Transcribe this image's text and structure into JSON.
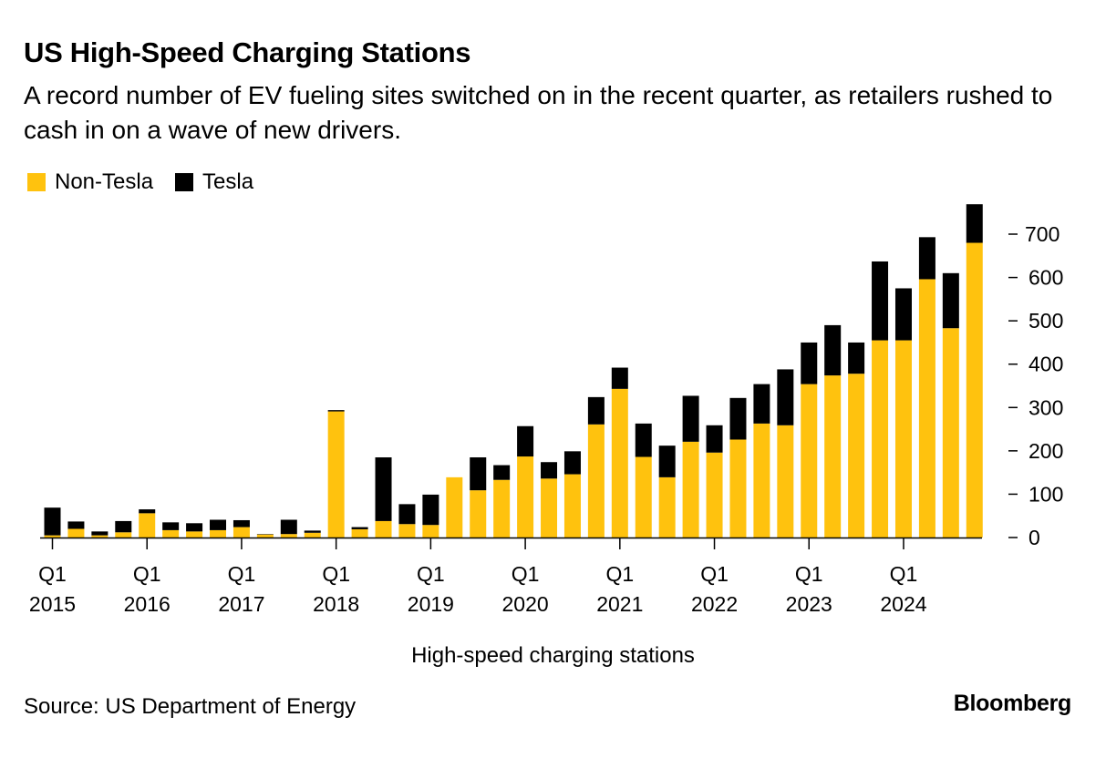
{
  "header": {
    "title": "US High-Speed Charging Stations",
    "subtitle": "A record number of EV fueling sites switched on in the recent quarter, as retailers rushed to cash in on a wave of new drivers."
  },
  "footer": {
    "source": "Source: US Department of Energy",
    "logo": "Bloomberg"
  },
  "colors": {
    "non_tesla": "#FFC20E",
    "tesla": "#000000",
    "axis": "#000000"
  },
  "chart_data": {
    "type": "bar",
    "stacked": true,
    "title": "US High-Speed Charging Stations",
    "subtitle": "A record number of EV fueling sites switched on in the recent quarter, as retailers rushed to cash in on a wave of new drivers.",
    "xlabel": "High-speed charging stations",
    "ylabel": "",
    "ylim": [
      0,
      770
    ],
    "yticks": [
      0,
      100,
      200,
      300,
      400,
      500,
      600,
      700
    ],
    "y_axis_side": "right",
    "grid": false,
    "legend_position": "top-left",
    "categories": [
      "Q1 2015",
      "Q2 2015",
      "Q3 2015",
      "Q4 2015",
      "Q1 2016",
      "Q2 2016",
      "Q3 2016",
      "Q4 2016",
      "Q1 2017",
      "Q2 2017",
      "Q3 2017",
      "Q4 2017",
      "Q1 2018",
      "Q2 2018",
      "Q3 2018",
      "Q4 2018",
      "Q1 2019",
      "Q2 2019",
      "Q3 2019",
      "Q4 2019",
      "Q1 2020",
      "Q2 2020",
      "Q3 2020",
      "Q4 2020",
      "Q1 2021",
      "Q2 2021",
      "Q3 2021",
      "Q4 2021",
      "Q1 2022",
      "Q2 2022",
      "Q3 2022",
      "Q4 2022",
      "Q1 2023",
      "Q2 2023",
      "Q3 2023",
      "Q4 2023",
      "Q1 2024",
      "Q2 2024",
      "Q3 2024",
      "Q4 2024"
    ],
    "xtick_labels": [
      {
        "index": 0,
        "line1": "Q1",
        "line2": "2015"
      },
      {
        "index": 4,
        "line1": "Q1",
        "line2": "2016"
      },
      {
        "index": 8,
        "line1": "Q1",
        "line2": "2017"
      },
      {
        "index": 12,
        "line1": "Q1",
        "line2": "2018"
      },
      {
        "index": 16,
        "line1": "Q1",
        "line2": "2019"
      },
      {
        "index": 20,
        "line1": "Q1",
        "line2": "2020"
      },
      {
        "index": 24,
        "line1": "Q1",
        "line2": "2021"
      },
      {
        "index": 28,
        "line1": "Q1",
        "line2": "2022"
      },
      {
        "index": 32,
        "line1": "Q1",
        "line2": "2023"
      },
      {
        "index": 36,
        "line1": "Q1",
        "line2": "2024"
      }
    ],
    "series": [
      {
        "name": "Non-Tesla",
        "color": "#FFC20E",
        "values": [
          5,
          20,
          5,
          12,
          56,
          17,
          14,
          17,
          24,
          7,
          8,
          11,
          291,
          19,
          38,
          31,
          29,
          139,
          109,
          133,
          187,
          136,
          146,
          261,
          343,
          186,
          139,
          221,
          196,
          226,
          263,
          259,
          354,
          374,
          378,
          455,
          455,
          596,
          483,
          680
        ]
      },
      {
        "name": "Tesla",
        "color": "#000000",
        "values": [
          64,
          17,
          9,
          26,
          9,
          18,
          19,
          24,
          16,
          1,
          33,
          5,
          3,
          5,
          147,
          46,
          70,
          0,
          76,
          34,
          70,
          38,
          53,
          63,
          49,
          77,
          73,
          106,
          63,
          96,
          91,
          129,
          96,
          116,
          72,
          182,
          120,
          97,
          127,
          89
        ]
      }
    ]
  }
}
